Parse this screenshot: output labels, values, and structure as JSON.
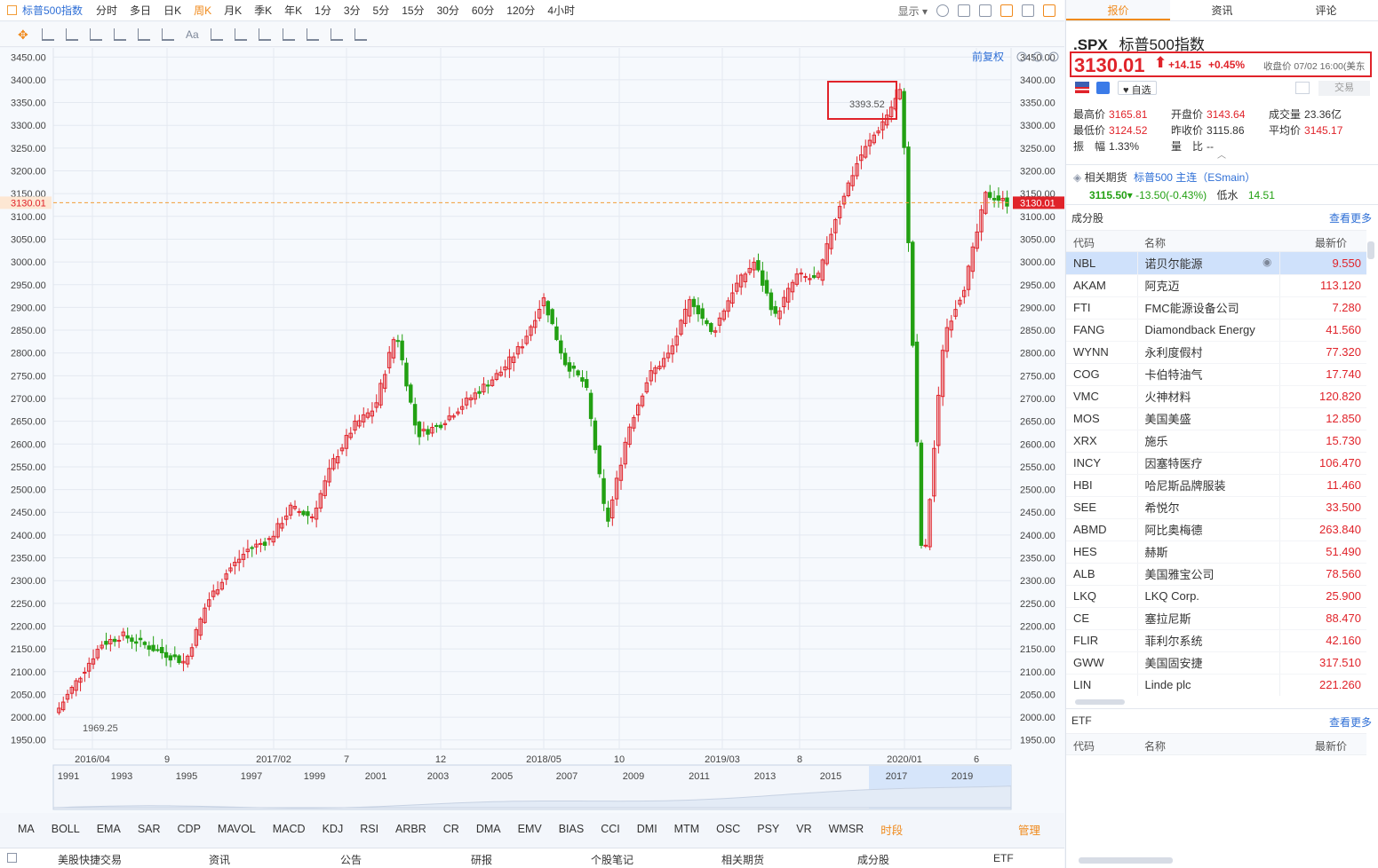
{
  "topbar": {
    "title": "标普500指数",
    "periods": [
      "分时",
      "多日",
      "日K",
      "周K",
      "月K",
      "季K",
      "年K",
      "1分",
      "3分",
      "5分",
      "15分",
      "30分",
      "60分",
      "120分",
      "4小时"
    ],
    "active_period": "周K",
    "display_label": "显示"
  },
  "chart": {
    "adjust_label": "前复权",
    "current_price_label": "3130.01",
    "high_annotation": "3393.52",
    "low_annotation": "1969.25",
    "y_ticks": [
      "3450.00",
      "3400.00",
      "3350.00",
      "3300.00",
      "3250.00",
      "3200.00",
      "3150.00",
      "3100.00",
      "3050.00",
      "3000.00",
      "2950.00",
      "2900.00",
      "2850.00",
      "2800.00",
      "2750.00",
      "2700.00",
      "2650.00",
      "2600.00",
      "2550.00",
      "2500.00",
      "2450.00",
      "2400.00",
      "2350.00",
      "2300.00",
      "2250.00",
      "2200.00",
      "2150.00",
      "2100.00",
      "2050.00",
      "2000.00",
      "1950.00"
    ],
    "x_labels": [
      "2016/04",
      "9",
      "2017/02",
      "7",
      "12",
      "2018/05",
      "10",
      "2019/03",
      "8",
      "2020/01",
      "6"
    ],
    "overview_years": [
      "1991",
      "1993",
      "1995",
      "1997",
      "1999",
      "2001",
      "2003",
      "2005",
      "2007",
      "2009",
      "2011",
      "2013",
      "2015",
      "2017",
      "2019"
    ],
    "colors": {
      "up": "#e0232a",
      "down": "#23a013",
      "grid": "#e4e9f1",
      "price_line": "#f29d38"
    }
  },
  "chart_data": {
    "type": "candlestick",
    "period": "weekly",
    "ylim": [
      1930,
      3470
    ],
    "anchors": [
      [
        "2016/04",
        2020
      ],
      [
        "2016/06",
        2090
      ],
      [
        "2016/07",
        2160
      ],
      [
        "2016/08",
        2180
      ],
      [
        "2016/09",
        2160
      ],
      [
        "2016/10",
        2140
      ],
      [
        "2016/11",
        2120
      ],
      [
        "2016/12",
        2250
      ],
      [
        "2017/02",
        2320
      ],
      [
        "2017/03",
        2370
      ],
      [
        "2017/05",
        2390
      ],
      [
        "2017/07",
        2460
      ],
      [
        "2017/08",
        2440
      ],
      [
        "2017/10",
        2560
      ],
      [
        "2017/11",
        2640
      ],
      [
        "2017/12",
        2680
      ],
      [
        "2018/01",
        2850
      ],
      [
        "2018/02",
        2620
      ],
      [
        "2018/03",
        2640
      ],
      [
        "2018/04",
        2680
      ],
      [
        "2018/05",
        2720
      ],
      [
        "2018/06",
        2760
      ],
      [
        "2018/07",
        2820
      ],
      [
        "2018/09",
        2920
      ],
      [
        "2018/10",
        2780
      ],
      [
        "2018/11",
        2730
      ],
      [
        "2018/12",
        2420
      ],
      [
        "2019/01",
        2630
      ],
      [
        "2019/02",
        2750
      ],
      [
        "2019/03",
        2800
      ],
      [
        "2019/04",
        2920
      ],
      [
        "2019/05",
        2840
      ],
      [
        "2019/06",
        2940
      ],
      [
        "2019/07",
        3000
      ],
      [
        "2019/08",
        2880
      ],
      [
        "2019/09",
        2970
      ],
      [
        "2019/10",
        2960
      ],
      [
        "2019/11",
        3120
      ],
      [
        "2019/12",
        3230
      ],
      [
        "2020/01",
        3300
      ],
      [
        "2020/02",
        3380
      ],
      [
        "2020/03",
        2300
      ],
      [
        "2020/04",
        2840
      ],
      [
        "2020/05",
        2950
      ],
      [
        "2020/06",
        3150
      ],
      [
        "2020/07",
        3130
      ]
    ]
  },
  "indicators": [
    "MA",
    "BOLL",
    "EMA",
    "SAR",
    "CDP",
    "MAVOL",
    "MACD",
    "KDJ",
    "RSI",
    "ARBR",
    "CR",
    "DMA",
    "EMV",
    "BIAS",
    "CCI",
    "DMI",
    "MTM",
    "OSC",
    "PSY",
    "VR",
    "WMSR",
    "时段"
  ],
  "indicator_manage": "管理",
  "bottom_tabs": [
    "美股快捷交易",
    "资讯",
    "公告",
    "研报",
    "个股笔记",
    "相关期货",
    "成分股",
    "ETF"
  ],
  "panel": {
    "tabs": [
      "报价",
      "资讯",
      "评论"
    ],
    "symbol": ".SPX",
    "name": "标普500指数",
    "price": "3130.01",
    "change": "+14.15",
    "change_pct": "+0.45%",
    "close_time": "收盘价 07/02 16:00(美东",
    "watch_label": "自选",
    "trade_label": "交易",
    "stats": [
      {
        "k": "最高价",
        "v": "3165.81",
        "c": "red"
      },
      {
        "k": "开盘价",
        "v": "3143.64",
        "c": "red"
      },
      {
        "k": "成交量",
        "v": "23.36亿",
        "c": "dark"
      },
      {
        "k": "最低价",
        "v": "3124.52",
        "c": "red"
      },
      {
        "k": "昨收价",
        "v": "3115.86",
        "c": "dark"
      },
      {
        "k": "平均价",
        "v": "3145.17",
        "c": "red"
      },
      {
        "k": "振　幅",
        "v": "1.33%",
        "c": "dark"
      },
      {
        "k": "量　比",
        "v": "--",
        "c": "dark"
      }
    ],
    "futures": {
      "label": "相关期货",
      "name": "标普500 主连（ESmain）",
      "price": "3115.50",
      "change": "-13.50(-0.43%)",
      "spread_label": "低水",
      "spread": "14.51"
    },
    "constituents_title": "成分股",
    "more_label": "查看更多",
    "col_code": "代码",
    "col_name": "名称",
    "col_price": "最新价",
    "constituents": [
      {
        "code": "NBL",
        "name": "诺贝尔能源",
        "price": "9.550"
      },
      {
        "code": "AKAM",
        "name": "阿克迈",
        "price": "113.120"
      },
      {
        "code": "FTI",
        "name": "FMC能源设备公司",
        "price": "7.280"
      },
      {
        "code": "FANG",
        "name": "Diamondback Energy",
        "price": "41.560"
      },
      {
        "code": "WYNN",
        "name": "永利度假村",
        "price": "77.320"
      },
      {
        "code": "COG",
        "name": "卡伯特油气",
        "price": "17.740"
      },
      {
        "code": "VMC",
        "name": "火神材料",
        "price": "120.820"
      },
      {
        "code": "MOS",
        "name": "美国美盛",
        "price": "12.850"
      },
      {
        "code": "XRX",
        "name": "施乐",
        "price": "15.730"
      },
      {
        "code": "INCY",
        "name": "因塞特医疗",
        "price": "106.470"
      },
      {
        "code": "HBI",
        "name": "哈尼斯品牌服装",
        "price": "11.460"
      },
      {
        "code": "SEE",
        "name": "希悦尔",
        "price": "33.500"
      },
      {
        "code": "ABMD",
        "name": "阿比奥梅德",
        "price": "263.840"
      },
      {
        "code": "HES",
        "name": "赫斯",
        "price": "51.490"
      },
      {
        "code": "ALB",
        "name": "美国雅宝公司",
        "price": "78.560"
      },
      {
        "code": "LKQ",
        "name": "LKQ Corp.",
        "price": "25.900"
      },
      {
        "code": "CE",
        "name": "塞拉尼斯",
        "price": "88.470"
      },
      {
        "code": "FLIR",
        "name": "菲利尔系统",
        "price": "42.160"
      },
      {
        "code": "GWW",
        "name": "美国固安捷",
        "price": "317.510"
      },
      {
        "code": "LIN",
        "name": "Linde plc",
        "price": "221.260"
      }
    ],
    "etf_title": "ETF",
    "etf_more_label": "查看更多"
  }
}
